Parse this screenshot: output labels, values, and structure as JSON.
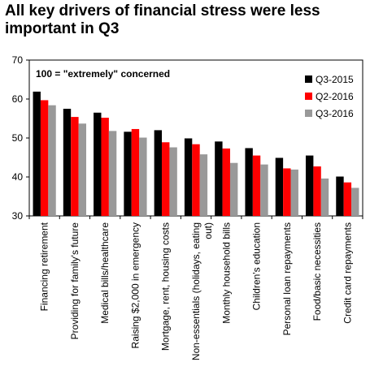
{
  "chart_data": {
    "type": "bar",
    "title": "All key drivers of financial stress were less important in Q3",
    "annotation": "100 = \"extremely\" concerned",
    "ylim": [
      30,
      70
    ],
    "yticks": [
      30,
      40,
      50,
      60,
      70
    ],
    "grid": false,
    "legend_position": "top-right",
    "categories": [
      "Financing retirement",
      "Providing for family's future",
      "Medical bills/healthcare",
      "Raising $2,000 in emergency",
      "Mortgage, rent, housing costs",
      "Non-essentials (holidays, eating out)",
      "Monthly household bills",
      "Children's education",
      "Personal loan repayments",
      "Food/basic necessities",
      "Credit card repayments"
    ],
    "series": [
      {
        "name": "Q3-2015",
        "color": "#000000",
        "values": [
          61.9,
          57.5,
          56.5,
          51.6,
          52.0,
          49.9,
          49.1,
          47.4,
          44.9,
          45.5,
          40.1
        ]
      },
      {
        "name": "Q2-2016",
        "color": "#ff0000",
        "values": [
          59.7,
          55.4,
          55.2,
          52.3,
          48.9,
          48.4,
          47.3,
          45.5,
          42.2,
          42.7,
          38.6
        ]
      },
      {
        "name": "Q3-2016",
        "color": "#999999",
        "values": [
          58.4,
          53.7,
          51.8,
          50.1,
          47.6,
          45.8,
          43.6,
          43.2,
          41.9,
          39.6,
          37.2
        ]
      }
    ]
  }
}
